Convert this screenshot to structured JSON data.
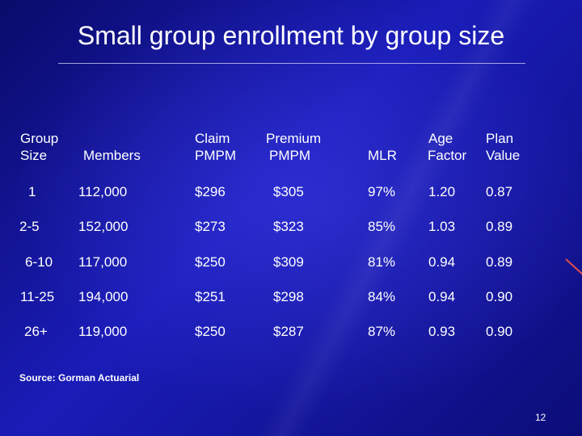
{
  "title": "Small group enrollment by group size",
  "headers": [
    [
      "Group",
      "Size"
    ],
    [
      "",
      "Members"
    ],
    [
      "Claim",
      "PMPM"
    ],
    [
      "Premium",
      "PMPM"
    ],
    [
      "",
      "MLR"
    ],
    [
      "Age",
      "Factor"
    ],
    [
      "Plan",
      "Value"
    ]
  ],
  "rows": [
    [
      "1",
      "112,000",
      "$296",
      "$305",
      "97%",
      "1.20",
      "0.87"
    ],
    [
      "2-5",
      "152,000",
      "$273",
      "$323",
      "85%",
      "1.03",
      "0.89"
    ],
    [
      "6-10",
      "117,000",
      "$250",
      "$309",
      "81%",
      "0.94",
      "0.89"
    ],
    [
      "11-25",
      "194,000",
      "$251",
      "$298",
      "84%",
      "0.94",
      "0.90"
    ],
    [
      "26+",
      "119,000",
      "$250",
      "$287",
      "87%",
      "0.93",
      "0.90"
    ]
  ],
  "source": "Source: Gorman Actuarial",
  "page_number": "12",
  "colors": {
    "background": "#0d0f7c",
    "text": "#ffffff",
    "accent": "#e05050"
  }
}
